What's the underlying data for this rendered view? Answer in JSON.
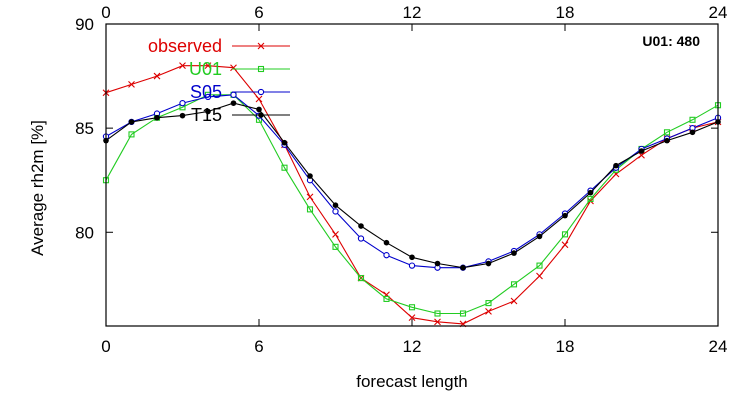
{
  "chart_data": {
    "type": "line",
    "title": "",
    "annotation": "U01: 480",
    "xlabel": "forecast length",
    "ylabel": "Average rh2m [%]",
    "xlim": [
      0,
      24
    ],
    "ylim": [
      75.5,
      90
    ],
    "xticks": [
      0,
      6,
      12,
      18,
      24
    ],
    "yticks": [
      80,
      85,
      90
    ],
    "grid": false,
    "legend_position": "top-left",
    "x": [
      0,
      1,
      2,
      3,
      4,
      5,
      6,
      7,
      8,
      9,
      10,
      11,
      12,
      13,
      14,
      15,
      16,
      17,
      18,
      19,
      20,
      21,
      22,
      23,
      24
    ],
    "series": [
      {
        "name": "observed",
        "color": "#dd0000",
        "marker": "x",
        "values": [
          86.7,
          87.1,
          87.5,
          88.0,
          88.0,
          87.9,
          86.4,
          84.2,
          81.7,
          79.9,
          77.8,
          77.0,
          75.9,
          75.7,
          75.6,
          76.2,
          76.7,
          77.9,
          79.4,
          81.5,
          82.8,
          83.7,
          84.5,
          85.0,
          85.3
        ]
      },
      {
        "name": "U01",
        "color": "#22cc22",
        "marker": "square",
        "values": [
          82.5,
          84.7,
          85.5,
          86.0,
          86.6,
          86.6,
          85.4,
          83.1,
          81.1,
          79.3,
          77.8,
          76.8,
          76.4,
          76.1,
          76.1,
          76.6,
          77.5,
          78.4,
          79.9,
          81.6,
          83.0,
          84.0,
          84.8,
          85.4,
          86.1
        ]
      },
      {
        "name": "S05",
        "color": "#0000cc",
        "marker": "circle",
        "values": [
          84.6,
          85.3,
          85.7,
          86.2,
          86.5,
          86.6,
          85.6,
          84.2,
          82.5,
          81.0,
          79.7,
          78.9,
          78.4,
          78.3,
          78.3,
          78.6,
          79.1,
          79.9,
          80.9,
          82.0,
          83.1,
          84.0,
          84.5,
          85.0,
          85.5
        ]
      },
      {
        "name": "T15",
        "color": "#000000",
        "marker": "dot",
        "values": [
          84.4,
          85.3,
          85.5,
          85.6,
          85.8,
          86.2,
          85.9,
          84.3,
          82.7,
          81.3,
          80.3,
          79.5,
          78.8,
          78.5,
          78.3,
          78.5,
          79.0,
          79.8,
          80.8,
          81.9,
          83.2,
          83.9,
          84.4,
          84.8,
          85.3
        ]
      }
    ]
  }
}
